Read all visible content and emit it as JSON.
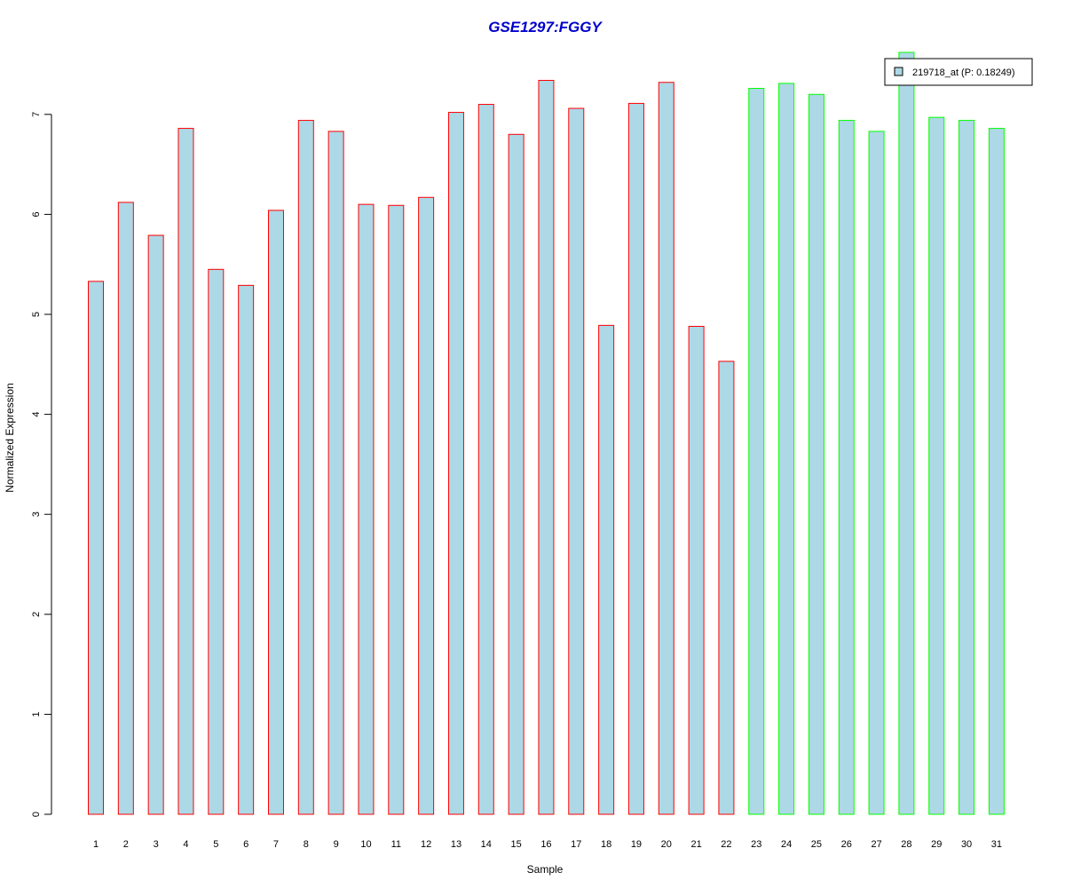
{
  "chart_data": {
    "type": "bar",
    "title": "GSE1297:FGGY",
    "xlabel": "Sample",
    "ylabel": "Normalized Expression",
    "ylim": [
      0,
      7.6
    ],
    "yticks": [
      0,
      1,
      2,
      3,
      4,
      5,
      6,
      7
    ],
    "grid": false,
    "legend_position": "top-right",
    "categories": [
      "1",
      "2",
      "3",
      "4",
      "5",
      "6",
      "7",
      "8",
      "9",
      "10",
      "11",
      "12",
      "13",
      "14",
      "15",
      "16",
      "17",
      "18",
      "19",
      "20",
      "21",
      "22",
      "23",
      "24",
      "25",
      "26",
      "27",
      "28",
      "29",
      "30",
      "31"
    ],
    "series": [
      {
        "name": "219718_at (P: 0.18249)",
        "values": [
          5.33,
          6.12,
          5.79,
          6.86,
          5.45,
          5.29,
          6.04,
          6.94,
          6.83,
          6.1,
          6.09,
          6.17,
          7.02,
          7.1,
          6.8,
          7.34,
          7.06,
          4.89,
          7.11,
          7.32,
          4.88,
          4.53,
          7.26,
          7.31,
          7.2,
          6.94,
          6.83,
          7.62,
          6.97,
          6.94,
          6.86
        ],
        "fill": "#add8e6"
      }
    ],
    "groups": [
      {
        "samples": "1-22",
        "border_color": "#ff0000"
      },
      {
        "samples": "23-31",
        "border_color": "#00ff00"
      }
    ],
    "colors": {
      "title": "#0000cc",
      "bar_fill": "#add8e6",
      "group1_border": "#ff0000",
      "group2_border": "#00ff00"
    }
  }
}
